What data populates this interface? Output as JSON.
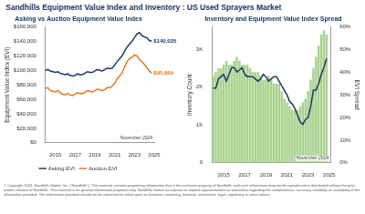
{
  "header": {
    "title": "Sandhills Equipment Value Index and Inventory : US Used Sprayers Market"
  },
  "chart_data": [
    {
      "type": "line",
      "title": "Asking vs Auction Equipment Value Index",
      "categories": [
        null,
        null,
        null,
        null,
        "2015",
        null,
        null,
        null,
        null,
        null,
        null,
        null,
        "2017",
        null,
        null,
        null,
        null,
        null,
        null,
        null,
        "2019",
        null,
        null,
        null,
        null,
        null,
        null,
        null,
        "2021",
        null,
        null,
        null,
        null,
        null,
        null,
        null,
        "2023",
        null,
        null,
        null,
        null,
        null,
        null,
        null,
        "2025"
      ],
      "series": [
        {
          "name": "Asking EVI",
          "color": "#1f3864",
          "values": [
            100000,
            101000,
            99000,
            98000,
            97000,
            98000,
            96000,
            95000,
            94000,
            95000,
            93000,
            92000,
            93000,
            95000,
            94000,
            94000,
            96000,
            98000,
            97000,
            97000,
            99000,
            101000,
            100000,
            99000,
            101000,
            103000,
            102000,
            103000,
            107000,
            112000,
            116000,
            120000,
            126000,
            132000,
            136000,
            140000,
            145000,
            150000,
            152000,
            148000,
            146000,
            145000,
            141000,
            140025,
            null
          ],
          "value_labels": [
            null,
            null,
            null,
            null,
            null,
            null,
            null,
            null,
            null,
            null,
            null,
            null,
            null,
            null,
            null,
            null,
            null,
            null,
            null,
            null,
            null,
            null,
            null,
            null,
            null,
            null,
            null,
            null,
            null,
            null,
            null,
            null,
            null,
            null,
            null,
            null,
            null,
            null,
            null,
            null,
            null,
            null,
            null,
            "$140,025",
            null
          ]
        },
        {
          "name": "Auction EVI",
          "color": "#e8771e",
          "values": [
            75000,
            76000,
            72000,
            71000,
            70000,
            72000,
            69000,
            67000,
            66000,
            68000,
            66000,
            65000,
            67000,
            69000,
            68000,
            68000,
            70000,
            72000,
            71000,
            70000,
            72000,
            74000,
            73000,
            72000,
            73000,
            76000,
            76000,
            78000,
            82000,
            88000,
            92000,
            97000,
            104000,
            112000,
            116000,
            118000,
            121000,
            120000,
            115000,
            112000,
            108000,
            104000,
            99000,
            95869,
            null
          ],
          "value_labels": [
            null,
            null,
            null,
            null,
            null,
            null,
            null,
            null,
            null,
            null,
            null,
            null,
            null,
            null,
            null,
            null,
            null,
            null,
            null,
            null,
            null,
            null,
            null,
            null,
            null,
            null,
            null,
            null,
            null,
            null,
            null,
            null,
            null,
            null,
            null,
            null,
            null,
            null,
            null,
            null,
            null,
            null,
            null,
            "$95,869",
            null
          ]
        }
      ],
      "ylabel": "Equipment Value Index (EVI)",
      "ylim": [
        0,
        160000
      ],
      "yticks": [
        {
          "value": 0,
          "label": "$0"
        },
        {
          "value": 20000,
          "label": "$20,000"
        },
        {
          "value": 40000,
          "label": "$40,000"
        },
        {
          "value": 60000,
          "label": "$60,000"
        },
        {
          "value": 80000,
          "label": "$80,000"
        },
        {
          "value": 100000,
          "label": "$100,000"
        },
        {
          "value": 120000,
          "label": "$120,000"
        },
        {
          "value": 140000,
          "label": "$140,000"
        },
        {
          "value": 160000,
          "label": "$160,000"
        }
      ],
      "grid": false,
      "legend": "bottom",
      "data_labels": true,
      "annotation": "November 2024"
    },
    {
      "type": "bar",
      "title": "Inventory and Equipment Value Index Spread",
      "categories": [
        null,
        null,
        null,
        null,
        "2015",
        null,
        null,
        null,
        null,
        null,
        null,
        null,
        "2017",
        null,
        null,
        null,
        null,
        null,
        null,
        null,
        "2019",
        null,
        null,
        null,
        null,
        null,
        null,
        null,
        "2021",
        null,
        null,
        null,
        null,
        null,
        null,
        null,
        "2023",
        null,
        null,
        null,
        null,
        null,
        null,
        null,
        "2025"
      ],
      "series": [
        {
          "type": "bar",
          "color": "#a9d18e",
          "values": [
            2300,
            2400,
            2500,
            2500,
            2600,
            2700,
            2600,
            2600,
            2700,
            2800,
            2700,
            2600,
            2600,
            2600,
            2500,
            2400,
            2400,
            2400,
            2300,
            2200,
            2200,
            2300,
            2200,
            2100,
            2100,
            2100,
            1900,
            1700,
            1600,
            1500,
            1400,
            1400,
            1400,
            1500,
            1600,
            1700,
            1900,
            2200,
            2500,
            2800,
            3100,
            3400,
            3500,
            3400,
            null
          ]
        },
        {
          "type": "line",
          "color": "#1f3864",
          "axis": "y2",
          "values": [
            33,
            33,
            37,
            38,
            39,
            36,
            39,
            42,
            42,
            40,
            41,
            42,
            39,
            38,
            38,
            38,
            37,
            36,
            37,
            39,
            38,
            36,
            37,
            38,
            38,
            36,
            34,
            32,
            30,
            27,
            26,
            24,
            21,
            18,
            17,
            19,
            20,
            25,
            32,
            32,
            35,
            39,
            42,
            46,
            null
          ]
        }
      ],
      "ylabel": "Inventory Count",
      "ylim": [
        0,
        3600
      ],
      "yticks": [
        0,
        {
          "value": 1000,
          "label": "1K"
        },
        {
          "value": 2000,
          "label": "2K"
        },
        {
          "value": 3000,
          "label": "3K"
        }
      ],
      "y2label": "EVI Spread",
      "y2lim": [
        0,
        60
      ],
      "y2ticks": [
        {
          "value": 0,
          "label": "0%"
        },
        {
          "value": 10,
          "label": "10%"
        },
        {
          "value": 20,
          "label": "20%"
        },
        {
          "value": 30,
          "label": "30%"
        },
        {
          "value": 40,
          "label": "40%"
        },
        {
          "value": 50,
          "label": "50%"
        },
        {
          "value": 60,
          "label": "60%"
        }
      ],
      "grid": false,
      "annotation": "November 2024"
    }
  ],
  "footer": {
    "text": "© Copyright 2024, Sandhills Global, Inc. (\"Sandhills\"). This material contains proprietary information that is the exclusive property of Sandhills, and such information may not be reproduced or distributed without the prior written consent of Sandhills. This material is for general information purposes only. Sandhills makes no express or implied representations or warranties regarding the completeness, accuracy, reliability, or availability of the information provided. The information provided should not be construed or relied upon as business, marketing, financial, investment, legal, regulatory, or other advice."
  }
}
